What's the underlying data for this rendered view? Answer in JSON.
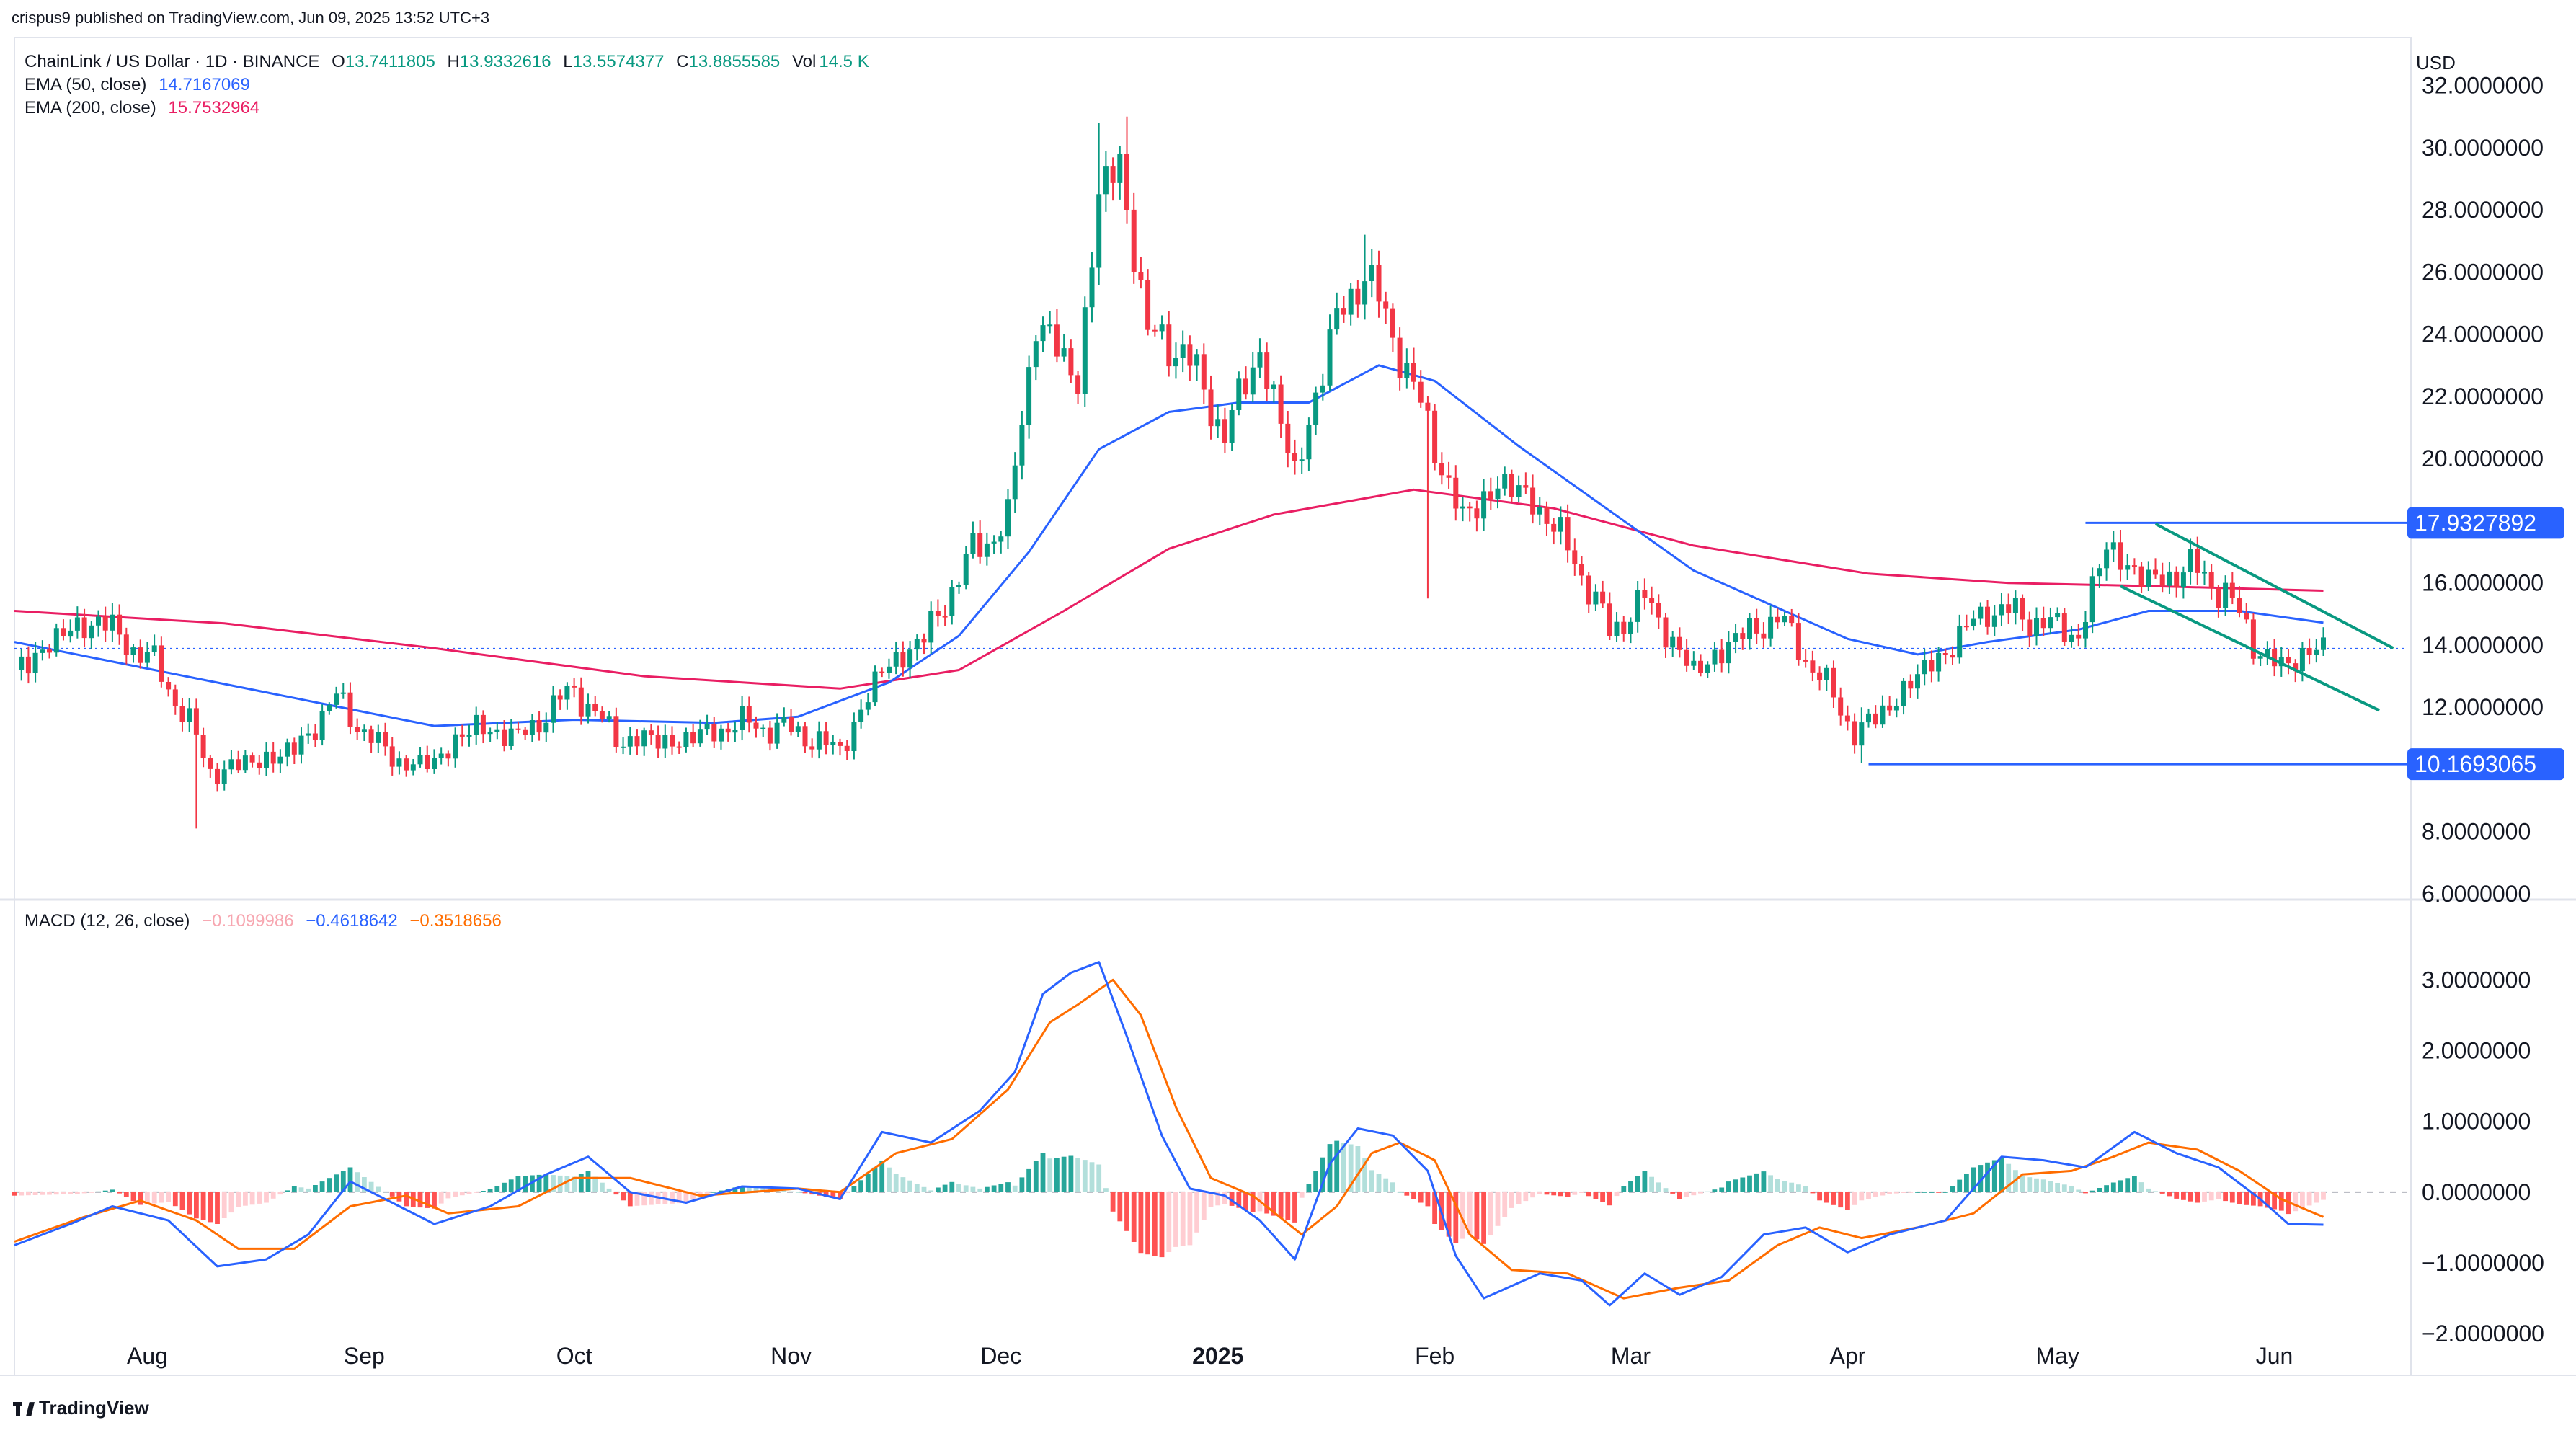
{
  "publisher_line": "crispus9 published on TradingView.com, Jun 09, 2025 13:52 UTC+3",
  "currency": "USD",
  "brand": "TradingView",
  "legend": {
    "symbol": "ChainLink / US Dollar · 1D · BINANCE",
    "ohlc": [
      {
        "k": "O",
        "v": "13.7411805"
      },
      {
        "k": "H",
        "v": "13.9332616"
      },
      {
        "k": "L",
        "v": "13.5574377"
      },
      {
        "k": "C",
        "v": "13.8855585"
      }
    ],
    "vol_label": "Vol",
    "vol_value": "14.5 K",
    "ema50_label": "EMA (50, close)",
    "ema50_value": "14.7167069",
    "ema200_label": "EMA (200, close)",
    "ema200_value": "15.7532964",
    "macd_label": "MACD (12, 26, close)",
    "macd_hist": "−0.1099986",
    "macd_line": "−0.4618642",
    "macd_signal": "−0.3518656"
  },
  "colors": {
    "up": "#089981",
    "down": "#f23645",
    "ema50": "#2962ff",
    "ema200": "#e91e63",
    "channel": "#089981",
    "level_line": "#2962ff",
    "macd_line": "#2962ff",
    "signal_line": "#ff6d00",
    "hist_up_strong": "#26a69a",
    "hist_up_weak": "#b2dfdb",
    "hist_down_strong": "#ff5252",
    "hist_down_weak": "#ffcdd2"
  },
  "chart_data": {
    "type": "candlestick",
    "price_axis": {
      "ticks": [
        {
          "v": 32,
          "label": "32.0000000"
        },
        {
          "v": 30,
          "label": "30.0000000"
        },
        {
          "v": 28,
          "label": "28.0000000"
        },
        {
          "v": 26,
          "label": "26.0000000"
        },
        {
          "v": 24,
          "label": "24.0000000"
        },
        {
          "v": 22,
          "label": "22.0000000"
        },
        {
          "v": 20,
          "label": "20.0000000"
        },
        {
          "v": 16,
          "label": "16.0000000"
        },
        {
          "v": 14,
          "label": "14.0000000"
        },
        {
          "v": 12,
          "label": "12.0000000"
        },
        {
          "v": 8,
          "label": "8.0000000"
        },
        {
          "v": 6,
          "label": "6.0000000"
        }
      ],
      "range": [
        6,
        32.2
      ]
    },
    "macd_axis": {
      "ticks": [
        {
          "v": 3,
          "label": "3.0000000"
        },
        {
          "v": 2,
          "label": "2.0000000"
        },
        {
          "v": 1,
          "label": "1.0000000"
        },
        {
          "v": 0,
          "label": "0.0000000"
        },
        {
          "v": -1,
          "label": "−1.0000000"
        },
        {
          "v": -2,
          "label": "−2.0000000"
        }
      ],
      "range": [
        -2.1,
        3.4
      ]
    },
    "time_axis": {
      "ticks": [
        {
          "t": 19,
          "label": "Aug",
          "bold": false
        },
        {
          "t": 50,
          "label": "Sep",
          "bold": false
        },
        {
          "t": 80,
          "label": "Oct",
          "bold": false
        },
        {
          "t": 111,
          "label": "Nov",
          "bold": false
        },
        {
          "t": 141,
          "label": "Dec",
          "bold": false
        },
        {
          "t": 172,
          "label": "2025",
          "bold": true
        },
        {
          "t": 203,
          "label": "Feb",
          "bold": false
        },
        {
          "t": 231,
          "label": "Mar",
          "bold": false
        },
        {
          "t": 262,
          "label": "Apr",
          "bold": false
        },
        {
          "t": 292,
          "label": "May",
          "bold": false
        },
        {
          "t": 323,
          "label": "Jun",
          "bold": false
        }
      ],
      "range": [
        0,
        342
      ]
    },
    "last_close": 13.8855585,
    "levels": [
      {
        "value": 17.9327892,
        "label": "17.9327892",
        "t_start": 296
      },
      {
        "value": 10.1693065,
        "label": "10.1693065",
        "t_start": 265
      }
    ],
    "channel": {
      "upper": [
        {
          "t": 306,
          "v": 17.9
        },
        {
          "t": 340,
          "v": 13.9
        }
      ],
      "lower": [
        {
          "t": 301,
          "v": 15.9
        },
        {
          "t": 338,
          "v": 11.9
        }
      ]
    },
    "anchors": [
      {
        "t": 0,
        "v": 13.2
      },
      {
        "t": 8,
        "v": 14.5
      },
      {
        "t": 12,
        "v": 14.8
      },
      {
        "t": 20,
        "v": 13.4
      },
      {
        "t": 25,
        "v": 11.5
      },
      {
        "t": 28,
        "v": 9.9
      },
      {
        "t": 35,
        "v": 10.3
      },
      {
        "t": 40,
        "v": 10.6
      },
      {
        "t": 46,
        "v": 12.3
      },
      {
        "t": 52,
        "v": 10.7
      },
      {
        "t": 58,
        "v": 10.0
      },
      {
        "t": 66,
        "v": 11.4
      },
      {
        "t": 72,
        "v": 11.0
      },
      {
        "t": 80,
        "v": 12.6
      },
      {
        "t": 86,
        "v": 11.0
      },
      {
        "t": 95,
        "v": 10.9
      },
      {
        "t": 104,
        "v": 11.5
      },
      {
        "t": 112,
        "v": 11.2
      },
      {
        "t": 118,
        "v": 10.6
      },
      {
        "t": 124,
        "v": 13.2
      },
      {
        "t": 130,
        "v": 14.2
      },
      {
        "t": 137,
        "v": 17.0
      },
      {
        "t": 142,
        "v": 18.0
      },
      {
        "t": 146,
        "v": 24.5
      },
      {
        "t": 152,
        "v": 22.5
      },
      {
        "t": 155,
        "v": 28.5
      },
      {
        "t": 158,
        "v": 29.5
      },
      {
        "t": 162,
        "v": 24.0
      },
      {
        "t": 167,
        "v": 23.5
      },
      {
        "t": 173,
        "v": 20.8
      },
      {
        "t": 178,
        "v": 23.5
      },
      {
        "t": 183,
        "v": 19.5
      },
      {
        "t": 189,
        "v": 24.5
      },
      {
        "t": 193,
        "v": 26.0
      },
      {
        "t": 198,
        "v": 23.5
      },
      {
        "t": 202,
        "v": 21.0
      },
      {
        "t": 207,
        "v": 18.0
      },
      {
        "t": 212,
        "v": 19.2
      },
      {
        "t": 217,
        "v": 18.7
      },
      {
        "t": 223,
        "v": 16.8
      },
      {
        "t": 228,
        "v": 14.4
      },
      {
        "t": 233,
        "v": 15.5
      },
      {
        "t": 240,
        "v": 13.1
      },
      {
        "t": 246,
        "v": 14.2
      },
      {
        "t": 252,
        "v": 14.9
      },
      {
        "t": 258,
        "v": 13.0
      },
      {
        "t": 263,
        "v": 11.2
      },
      {
        "t": 266,
        "v": 11.6
      },
      {
        "t": 271,
        "v": 12.8
      },
      {
        "t": 276,
        "v": 13.8
      },
      {
        "t": 282,
        "v": 15.2
      },
      {
        "t": 289,
        "v": 14.8
      },
      {
        "t": 295,
        "v": 14.3
      },
      {
        "t": 299,
        "v": 17.2
      },
      {
        "t": 305,
        "v": 16.0
      },
      {
        "t": 311,
        "v": 16.5
      },
      {
        "t": 316,
        "v": 15.7
      },
      {
        "t": 320,
        "v": 14.1
      },
      {
        "t": 324,
        "v": 13.2
      },
      {
        "t": 328,
        "v": 13.9
      },
      {
        "t": 330,
        "v": 13.89
      }
    ],
    "wicks": [
      {
        "t": 26,
        "high": 11.8,
        "low": 8.1
      },
      {
        "t": 159,
        "high": 31.0,
        "low": 28.6
      },
      {
        "t": 155,
        "high": 30.8,
        "low": 27.5
      },
      {
        "t": 202,
        "high": 22.0,
        "low": 15.5
      },
      {
        "t": 193,
        "high": 27.2,
        "low": 25.0
      },
      {
        "t": 264,
        "high": 12.0,
        "low": 10.2
      }
    ],
    "ema50": [
      {
        "t": 0,
        "v": 14.1
      },
      {
        "t": 20,
        "v": 13.2
      },
      {
        "t": 40,
        "v": 12.3
      },
      {
        "t": 60,
        "v": 11.4
      },
      {
        "t": 80,
        "v": 11.6
      },
      {
        "t": 100,
        "v": 11.5
      },
      {
        "t": 112,
        "v": 11.7
      },
      {
        "t": 125,
        "v": 12.8
      },
      {
        "t": 135,
        "v": 14.3
      },
      {
        "t": 145,
        "v": 17.0
      },
      {
        "t": 155,
        "v": 20.3
      },
      {
        "t": 165,
        "v": 21.5
      },
      {
        "t": 175,
        "v": 21.8
      },
      {
        "t": 185,
        "v": 21.8
      },
      {
        "t": 195,
        "v": 23.0
      },
      {
        "t": 203,
        "v": 22.5
      },
      {
        "t": 215,
        "v": 20.4
      },
      {
        "t": 225,
        "v": 18.8
      },
      {
        "t": 240,
        "v": 16.4
      },
      {
        "t": 252,
        "v": 15.2
      },
      {
        "t": 262,
        "v": 14.2
      },
      {
        "t": 272,
        "v": 13.7
      },
      {
        "t": 282,
        "v": 14.1
      },
      {
        "t": 295,
        "v": 14.5
      },
      {
        "t": 305,
        "v": 15.1
      },
      {
        "t": 318,
        "v": 15.1
      },
      {
        "t": 330,
        "v": 14.72
      }
    ],
    "ema200": [
      {
        "t": 0,
        "v": 15.1
      },
      {
        "t": 30,
        "v": 14.7
      },
      {
        "t": 60,
        "v": 13.9
      },
      {
        "t": 90,
        "v": 13.0
      },
      {
        "t": 118,
        "v": 12.6
      },
      {
        "t": 135,
        "v": 13.2
      },
      {
        "t": 150,
        "v": 15.1
      },
      {
        "t": 165,
        "v": 17.1
      },
      {
        "t": 180,
        "v": 18.2
      },
      {
        "t": 200,
        "v": 19.0
      },
      {
        "t": 220,
        "v": 18.4
      },
      {
        "t": 240,
        "v": 17.2
      },
      {
        "t": 265,
        "v": 16.3
      },
      {
        "t": 285,
        "v": 16.0
      },
      {
        "t": 305,
        "v": 15.9
      },
      {
        "t": 330,
        "v": 15.75
      }
    ],
    "macd": [
      {
        "t": 0,
        "v": -0.75
      },
      {
        "t": 8,
        "v": -0.45
      },
      {
        "t": 14,
        "v": -0.2
      },
      {
        "t": 22,
        "v": -0.4
      },
      {
        "t": 29,
        "v": -1.05
      },
      {
        "t": 36,
        "v": -0.95
      },
      {
        "t": 42,
        "v": -0.6
      },
      {
        "t": 48,
        "v": 0.15
      },
      {
        "t": 54,
        "v": -0.15
      },
      {
        "t": 60,
        "v": -0.45
      },
      {
        "t": 68,
        "v": -0.2
      },
      {
        "t": 76,
        "v": 0.25
      },
      {
        "t": 82,
        "v": 0.5
      },
      {
        "t": 88,
        "v": 0.0
      },
      {
        "t": 96,
        "v": -0.15
      },
      {
        "t": 104,
        "v": 0.08
      },
      {
        "t": 112,
        "v": 0.05
      },
      {
        "t": 118,
        "v": -0.1
      },
      {
        "t": 124,
        "v": 0.85
      },
      {
        "t": 131,
        "v": 0.7
      },
      {
        "t": 138,
        "v": 1.15
      },
      {
        "t": 143,
        "v": 1.7
      },
      {
        "t": 147,
        "v": 2.8
      },
      {
        "t": 151,
        "v": 3.1
      },
      {
        "t": 155,
        "v": 3.25
      },
      {
        "t": 159,
        "v": 2.2
      },
      {
        "t": 164,
        "v": 0.8
      },
      {
        "t": 168,
        "v": 0.05
      },
      {
        "t": 173,
        "v": -0.05
      },
      {
        "t": 178,
        "v": -0.4
      },
      {
        "t": 183,
        "v": -0.95
      },
      {
        "t": 188,
        "v": 0.4
      },
      {
        "t": 192,
        "v": 0.9
      },
      {
        "t": 197,
        "v": 0.8
      },
      {
        "t": 202,
        "v": 0.3
      },
      {
        "t": 206,
        "v": -0.9
      },
      {
        "t": 210,
        "v": -1.5
      },
      {
        "t": 218,
        "v": -1.15
      },
      {
        "t": 224,
        "v": -1.25
      },
      {
        "t": 228,
        "v": -1.6
      },
      {
        "t": 233,
        "v": -1.15
      },
      {
        "t": 238,
        "v": -1.45
      },
      {
        "t": 244,
        "v": -1.2
      },
      {
        "t": 250,
        "v": -0.6
      },
      {
        "t": 256,
        "v": -0.5
      },
      {
        "t": 262,
        "v": -0.85
      },
      {
        "t": 268,
        "v": -0.6
      },
      {
        "t": 276,
        "v": -0.4
      },
      {
        "t": 284,
        "v": 0.5
      },
      {
        "t": 290,
        "v": 0.45
      },
      {
        "t": 296,
        "v": 0.35
      },
      {
        "t": 303,
        "v": 0.85
      },
      {
        "t": 309,
        "v": 0.55
      },
      {
        "t": 315,
        "v": 0.35
      },
      {
        "t": 321,
        "v": -0.1
      },
      {
        "t": 325,
        "v": -0.45
      },
      {
        "t": 330,
        "v": -0.46
      }
    ],
    "signal": [
      {
        "t": 0,
        "v": -0.7
      },
      {
        "t": 10,
        "v": -0.35
      },
      {
        "t": 18,
        "v": -0.12
      },
      {
        "t": 26,
        "v": -0.4
      },
      {
        "t": 32,
        "v": -0.8
      },
      {
        "t": 40,
        "v": -0.8
      },
      {
        "t": 48,
        "v": -0.2
      },
      {
        "t": 56,
        "v": -0.05
      },
      {
        "t": 62,
        "v": -0.3
      },
      {
        "t": 72,
        "v": -0.2
      },
      {
        "t": 80,
        "v": 0.2
      },
      {
        "t": 88,
        "v": 0.2
      },
      {
        "t": 98,
        "v": -0.05
      },
      {
        "t": 112,
        "v": 0.05
      },
      {
        "t": 118,
        "v": 0.0
      },
      {
        "t": 126,
        "v": 0.55
      },
      {
        "t": 134,
        "v": 0.75
      },
      {
        "t": 142,
        "v": 1.45
      },
      {
        "t": 148,
        "v": 2.4
      },
      {
        "t": 152,
        "v": 2.65
      },
      {
        "t": 157,
        "v": 3.0
      },
      {
        "t": 161,
        "v": 2.5
      },
      {
        "t": 166,
        "v": 1.2
      },
      {
        "t": 171,
        "v": 0.2
      },
      {
        "t": 177,
        "v": -0.05
      },
      {
        "t": 184,
        "v": -0.6
      },
      {
        "t": 189,
        "v": -0.2
      },
      {
        "t": 194,
        "v": 0.55
      },
      {
        "t": 198,
        "v": 0.7
      },
      {
        "t": 203,
        "v": 0.45
      },
      {
        "t": 208,
        "v": -0.6
      },
      {
        "t": 214,
        "v": -1.1
      },
      {
        "t": 222,
        "v": -1.15
      },
      {
        "t": 230,
        "v": -1.5
      },
      {
        "t": 238,
        "v": -1.35
      },
      {
        "t": 245,
        "v": -1.25
      },
      {
        "t": 252,
        "v": -0.75
      },
      {
        "t": 258,
        "v": -0.5
      },
      {
        "t": 264,
        "v": -0.65
      },
      {
        "t": 272,
        "v": -0.5
      },
      {
        "t": 280,
        "v": -0.3
      },
      {
        "t": 287,
        "v": 0.25
      },
      {
        "t": 294,
        "v": 0.3
      },
      {
        "t": 300,
        "v": 0.5
      },
      {
        "t": 305,
        "v": 0.7
      },
      {
        "t": 312,
        "v": 0.6
      },
      {
        "t": 318,
        "v": 0.3
      },
      {
        "t": 324,
        "v": -0.1
      },
      {
        "t": 330,
        "v": -0.35
      }
    ]
  }
}
